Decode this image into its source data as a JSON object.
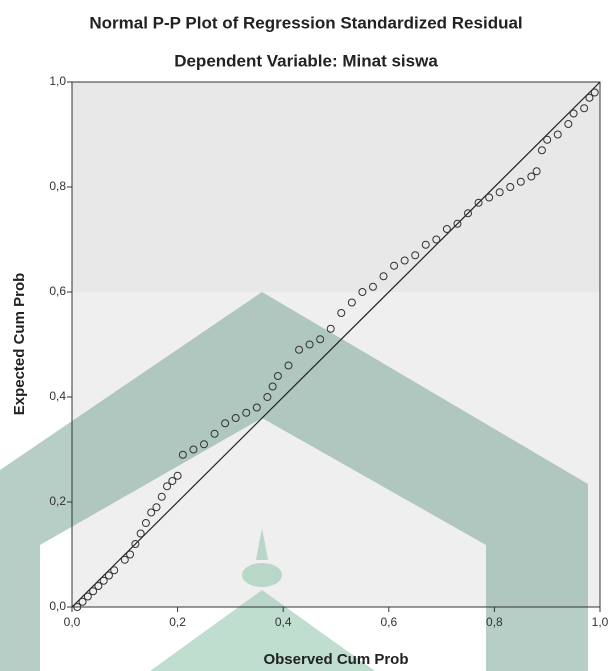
{
  "chart_data": {
    "type": "scatter",
    "title": "Normal P-P Plot of Regression Standardized Residual",
    "subtitle": "Dependent Variable: Minat siswa",
    "xlabel": "Observed Cum Prob",
    "ylabel": "Expected Cum Prob",
    "xlim": [
      0,
      1
    ],
    "ylim": [
      0,
      1
    ],
    "xticks": [
      {
        "value": 0,
        "label": "0,0"
      },
      {
        "value": 0.2,
        "label": "0,2"
      },
      {
        "value": 0.4,
        "label": "0,4"
      },
      {
        "value": 0.6,
        "label": "0,6"
      },
      {
        "value": 0.8,
        "label": "0,8"
      },
      {
        "value": 1,
        "label": "1,0"
      }
    ],
    "yticks": [
      {
        "value": 0,
        "label": "0,0"
      },
      {
        "value": 0.2,
        "label": "0,2"
      },
      {
        "value": 0.4,
        "label": "0,4"
      },
      {
        "value": 0.6,
        "label": "0,6"
      },
      {
        "value": 0.8,
        "label": "0,8"
      },
      {
        "value": 1,
        "label": "1,0"
      }
    ],
    "color": "#333333",
    "x": [
      0.01,
      0.02,
      0.03,
      0.04,
      0.05,
      0.06,
      0.07,
      0.08,
      0.1,
      0.11,
      0.12,
      0.13,
      0.14,
      0.15,
      0.16,
      0.17,
      0.18,
      0.19,
      0.2,
      0.21,
      0.23,
      0.25,
      0.27,
      0.29,
      0.31,
      0.33,
      0.35,
      0.37,
      0.38,
      0.39,
      0.41,
      0.43,
      0.45,
      0.47,
      0.49,
      0.51,
      0.53,
      0.55,
      0.57,
      0.59,
      0.61,
      0.63,
      0.65,
      0.67,
      0.69,
      0.71,
      0.73,
      0.75,
      0.77,
      0.79,
      0.81,
      0.83,
      0.85,
      0.87,
      0.88,
      0.89,
      0.9,
      0.92,
      0.94,
      0.95,
      0.97,
      0.98,
      0.99
    ],
    "values": [
      0.0,
      0.01,
      0.02,
      0.03,
      0.04,
      0.05,
      0.06,
      0.07,
      0.09,
      0.1,
      0.12,
      0.14,
      0.16,
      0.18,
      0.19,
      0.21,
      0.23,
      0.24,
      0.25,
      0.29,
      0.3,
      0.31,
      0.33,
      0.35,
      0.36,
      0.37,
      0.38,
      0.4,
      0.42,
      0.44,
      0.46,
      0.49,
      0.5,
      0.51,
      0.53,
      0.56,
      0.58,
      0.6,
      0.61,
      0.63,
      0.65,
      0.66,
      0.67,
      0.69,
      0.7,
      0.72,
      0.73,
      0.75,
      0.77,
      0.78,
      0.79,
      0.8,
      0.81,
      0.82,
      0.83,
      0.87,
      0.89,
      0.9,
      0.92,
      0.94,
      0.95,
      0.97,
      0.98
    ]
  }
}
